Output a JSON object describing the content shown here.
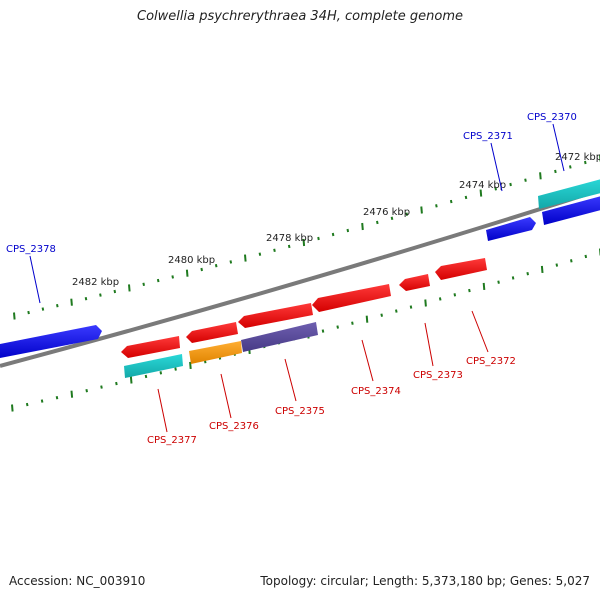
{
  "title": "Colwellia psychrerythraea 34H, complete genome",
  "footer": {
    "accession": "Accession: NC_003910",
    "summary": "Topology: circular; Length: 5,373,180 bp; Genes: 5,027"
  },
  "colors": {
    "backbone": "#808080",
    "tick": "#1f7a1f",
    "forward_gene": "#0000ee",
    "reverse_gene": "#ee0000",
    "teal_gene": "#19c0c0",
    "orange_gene": "#f59a1a",
    "purple_gene": "#5a4a9a",
    "top_label": "#0000cc",
    "bottom_label": "#cc0000"
  },
  "kbp_labels": [
    "2482 kbp",
    "2480 kbp",
    "2478 kbp",
    "2476 kbp",
    "2474 kbp",
    "2472 kbp"
  ],
  "genes": [
    {
      "id": "CPS_2378",
      "color": "forward_gene",
      "label_color": "top_label"
    },
    {
      "id": "CPS_2377",
      "color": "reverse_gene",
      "label_color": "bottom_label"
    },
    {
      "id": "CPS_2376",
      "color": "reverse_gene",
      "label_color": "bottom_label"
    },
    {
      "id": "CPS_2375",
      "color": "reverse_gene",
      "label_color": "bottom_label"
    },
    {
      "id": "CPS_2374",
      "color": "reverse_gene",
      "label_color": "bottom_label"
    },
    {
      "id": "CPS_2373",
      "color": "reverse_gene",
      "label_color": "bottom_label"
    },
    {
      "id": "CPS_2372",
      "color": "reverse_gene",
      "label_color": "bottom_label"
    },
    {
      "id": "CPS_2371",
      "color": "forward_gene",
      "label_color": "top_label"
    },
    {
      "id": "CPS_2370",
      "color": "teal_gene",
      "label_color": "top_label"
    }
  ]
}
